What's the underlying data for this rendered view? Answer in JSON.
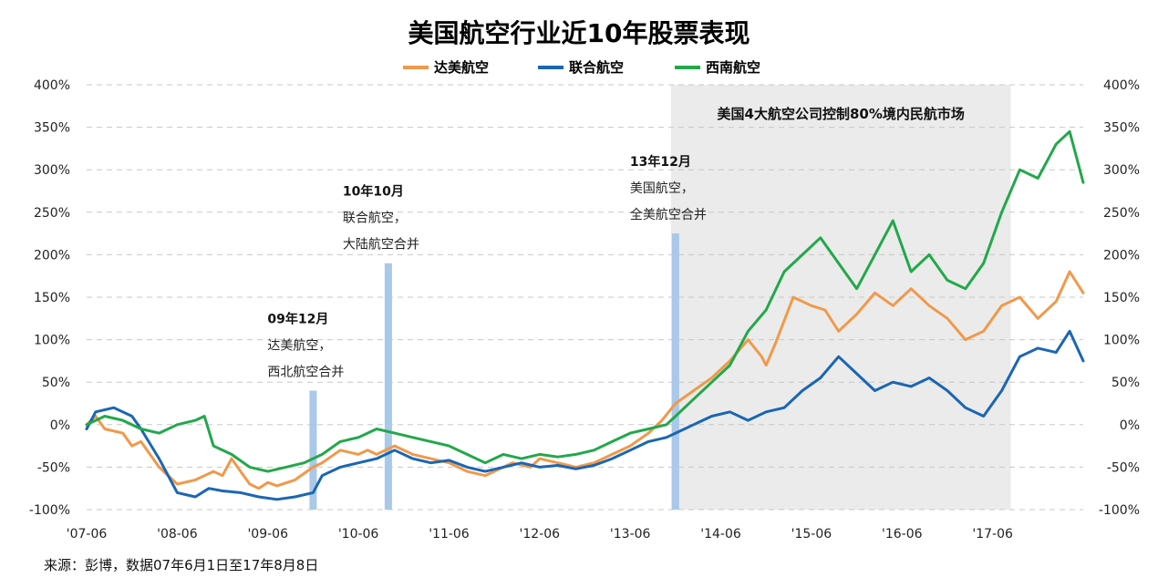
{
  "chart_data": {
    "type": "line",
    "title": "美国航空行业近10年股票表现",
    "source": "来源：彭博，数据07年6月1日至17年8月8日",
    "x_tick_labels": [
      "'07-06",
      "'08-06",
      "'09-06",
      "'10-06",
      "'11-06",
      "'12-06",
      "'13-06",
      "'14-06",
      "'15-06",
      "'16-06",
      "'17-06"
    ],
    "y_tick_labels": [
      "-100%",
      "-50%",
      "0%",
      "50%",
      "100%",
      "150%",
      "200%",
      "250%",
      "300%",
      "350%",
      "400%"
    ],
    "ylim": [
      -100,
      400
    ],
    "grid": "horizontal dashed",
    "legend_position": "top-center",
    "shaded_region": {
      "x_start": 6.45,
      "x_end": 10.2,
      "label": "美国4大航空公司控制80%境内民航市场"
    },
    "annotations": [
      {
        "x": 2.5,
        "height": 40,
        "date": "09年12月",
        "lines": [
          "达美航空，",
          "西北航空合并"
        ]
      },
      {
        "x": 3.33,
        "height": 190,
        "date": "10年10月",
        "lines": [
          "联合航空，",
          "大陆航空合并"
        ]
      },
      {
        "x": 6.5,
        "height": 225,
        "date": "13年12月",
        "lines": [
          "美国航空，",
          "全美航空合并"
        ]
      }
    ],
    "series": [
      {
        "name": "达美航空",
        "color": "#f0994a",
        "points": [
          [
            0,
            0
          ],
          [
            0.1,
            10
          ],
          [
            0.2,
            -5
          ],
          [
            0.4,
            -10
          ],
          [
            0.5,
            -25
          ],
          [
            0.6,
            -20
          ],
          [
            0.8,
            -50
          ],
          [
            1,
            -70
          ],
          [
            1.2,
            -65
          ],
          [
            1.4,
            -55
          ],
          [
            1.5,
            -60
          ],
          [
            1.6,
            -40
          ],
          [
            1.7,
            -55
          ],
          [
            1.8,
            -70
          ],
          [
            1.9,
            -75
          ],
          [
            2,
            -68
          ],
          [
            2.1,
            -72
          ],
          [
            2.3,
            -65
          ],
          [
            2.5,
            -50
          ],
          [
            2.6,
            -45
          ],
          [
            2.8,
            -30
          ],
          [
            3,
            -35
          ],
          [
            3.1,
            -30
          ],
          [
            3.2,
            -35
          ],
          [
            3.4,
            -25
          ],
          [
            3.6,
            -35
          ],
          [
            3.8,
            -40
          ],
          [
            4,
            -45
          ],
          [
            4.2,
            -55
          ],
          [
            4.4,
            -60
          ],
          [
            4.5,
            -55
          ],
          [
            4.7,
            -45
          ],
          [
            4.9,
            -50
          ],
          [
            5,
            -40
          ],
          [
            5.2,
            -45
          ],
          [
            5.4,
            -50
          ],
          [
            5.6,
            -45
          ],
          [
            5.8,
            -35
          ],
          [
            6,
            -25
          ],
          [
            6.2,
            -10
          ],
          [
            6.35,
            5
          ],
          [
            6.5,
            25
          ],
          [
            6.7,
            40
          ],
          [
            6.9,
            55
          ],
          [
            7.1,
            75
          ],
          [
            7.3,
            100
          ],
          [
            7.45,
            80
          ],
          [
            7.5,
            70
          ],
          [
            7.6,
            95
          ],
          [
            7.8,
            150
          ],
          [
            8,
            140
          ],
          [
            8.15,
            135
          ],
          [
            8.3,
            110
          ],
          [
            8.5,
            130
          ],
          [
            8.7,
            155
          ],
          [
            8.9,
            140
          ],
          [
            9.1,
            160
          ],
          [
            9.3,
            140
          ],
          [
            9.5,
            125
          ],
          [
            9.7,
            100
          ],
          [
            9.9,
            110
          ],
          [
            10.1,
            140
          ],
          [
            10.3,
            150
          ],
          [
            10.5,
            125
          ],
          [
            10.7,
            145
          ],
          [
            10.85,
            180
          ],
          [
            11,
            155
          ]
        ]
      },
      {
        "name": "联合航空",
        "color": "#1a66b3",
        "points": [
          [
            0,
            -5
          ],
          [
            0.1,
            15
          ],
          [
            0.3,
            20
          ],
          [
            0.5,
            10
          ],
          [
            0.6,
            -5
          ],
          [
            0.8,
            -40
          ],
          [
            1,
            -80
          ],
          [
            1.2,
            -85
          ],
          [
            1.35,
            -75
          ],
          [
            1.5,
            -78
          ],
          [
            1.7,
            -80
          ],
          [
            1.9,
            -85
          ],
          [
            2.1,
            -88
          ],
          [
            2.3,
            -85
          ],
          [
            2.5,
            -80
          ],
          [
            2.6,
            -60
          ],
          [
            2.8,
            -50
          ],
          [
            3,
            -45
          ],
          [
            3.2,
            -40
          ],
          [
            3.4,
            -30
          ],
          [
            3.6,
            -40
          ],
          [
            3.8,
            -45
          ],
          [
            4,
            -42
          ],
          [
            4.2,
            -50
          ],
          [
            4.4,
            -55
          ],
          [
            4.6,
            -50
          ],
          [
            4.8,
            -45
          ],
          [
            5,
            -50
          ],
          [
            5.2,
            -48
          ],
          [
            5.4,
            -52
          ],
          [
            5.6,
            -48
          ],
          [
            5.8,
            -40
          ],
          [
            6,
            -30
          ],
          [
            6.2,
            -20
          ],
          [
            6.4,
            -15
          ],
          [
            6.5,
            -10
          ],
          [
            6.7,
            0
          ],
          [
            6.9,
            10
          ],
          [
            7.1,
            15
          ],
          [
            7.3,
            5
          ],
          [
            7.5,
            15
          ],
          [
            7.7,
            20
          ],
          [
            7.9,
            40
          ],
          [
            8.1,
            55
          ],
          [
            8.3,
            80
          ],
          [
            8.5,
            60
          ],
          [
            8.7,
            40
          ],
          [
            8.9,
            50
          ],
          [
            9.1,
            45
          ],
          [
            9.3,
            55
          ],
          [
            9.5,
            40
          ],
          [
            9.7,
            20
          ],
          [
            9.9,
            10
          ],
          [
            10.1,
            40
          ],
          [
            10.3,
            80
          ],
          [
            10.5,
            90
          ],
          [
            10.7,
            85
          ],
          [
            10.85,
            110
          ],
          [
            11,
            75
          ]
        ]
      },
      {
        "name": "西南航空",
        "color": "#22a84a",
        "points": [
          [
            0,
            0
          ],
          [
            0.2,
            10
          ],
          [
            0.4,
            5
          ],
          [
            0.6,
            -5
          ],
          [
            0.8,
            -10
          ],
          [
            1,
            0
          ],
          [
            1.2,
            5
          ],
          [
            1.3,
            10
          ],
          [
            1.4,
            -25
          ],
          [
            1.6,
            -35
          ],
          [
            1.8,
            -50
          ],
          [
            2,
            -55
          ],
          [
            2.2,
            -50
          ],
          [
            2.4,
            -45
          ],
          [
            2.6,
            -35
          ],
          [
            2.8,
            -20
          ],
          [
            3,
            -15
          ],
          [
            3.2,
            -5
          ],
          [
            3.4,
            -10
          ],
          [
            3.6,
            -15
          ],
          [
            3.8,
            -20
          ],
          [
            4,
            -25
          ],
          [
            4.2,
            -35
          ],
          [
            4.4,
            -45
          ],
          [
            4.6,
            -35
          ],
          [
            4.8,
            -40
          ],
          [
            5,
            -35
          ],
          [
            5.2,
            -38
          ],
          [
            5.4,
            -35
          ],
          [
            5.6,
            -30
          ],
          [
            5.8,
            -20
          ],
          [
            6,
            -10
          ],
          [
            6.2,
            -5
          ],
          [
            6.4,
            0
          ],
          [
            6.5,
            10
          ],
          [
            6.7,
            30
          ],
          [
            6.9,
            50
          ],
          [
            7.1,
            70
          ],
          [
            7.3,
            110
          ],
          [
            7.5,
            135
          ],
          [
            7.7,
            180
          ],
          [
            7.9,
            200
          ],
          [
            8.1,
            220
          ],
          [
            8.3,
            190
          ],
          [
            8.5,
            160
          ],
          [
            8.7,
            200
          ],
          [
            8.9,
            240
          ],
          [
            9.1,
            180
          ],
          [
            9.3,
            200
          ],
          [
            9.5,
            170
          ],
          [
            9.7,
            160
          ],
          [
            9.9,
            190
          ],
          [
            10.1,
            250
          ],
          [
            10.3,
            300
          ],
          [
            10.5,
            290
          ],
          [
            10.7,
            330
          ],
          [
            10.85,
            345
          ],
          [
            11,
            285
          ]
        ]
      }
    ]
  }
}
